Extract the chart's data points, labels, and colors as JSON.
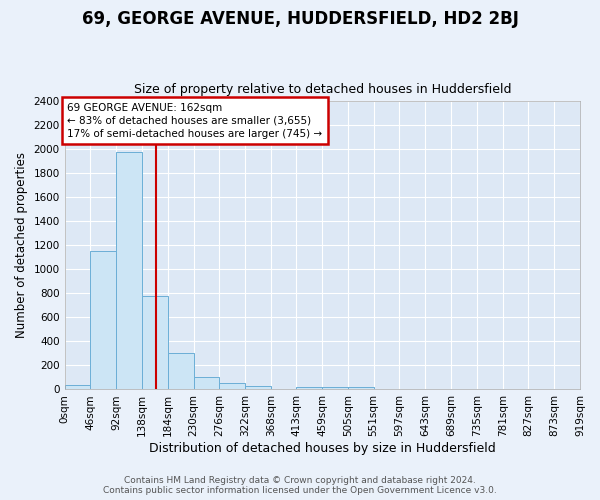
{
  "title1": "69, GEORGE AVENUE, HUDDERSFIELD, HD2 2BJ",
  "title2": "Size of property relative to detached houses in Huddersfield",
  "xlabel": "Distribution of detached houses by size in Huddersfield",
  "ylabel": "Number of detached properties",
  "bar_edges": [
    0,
    46,
    92,
    138,
    184,
    230,
    276,
    322,
    368,
    413,
    459,
    505,
    551,
    597,
    643,
    689,
    735,
    781,
    827,
    873,
    919
  ],
  "bar_heights": [
    40,
    1150,
    1980,
    780,
    300,
    100,
    50,
    30,
    0,
    20,
    20,
    20,
    0,
    0,
    0,
    0,
    0,
    0,
    0,
    0
  ],
  "bar_color": "#cce5f5",
  "bar_edge_color": "#6baed6",
  "red_line_x": 162,
  "annot_line1": "69 GEORGE AVENUE: 162sqm",
  "annot_line2": "← 83% of detached houses are smaller (3,655)",
  "annot_line3": "17% of semi-detached houses are larger (745) →",
  "annotation_box_color": "#ffffff",
  "annotation_box_edge": "#cc0000",
  "ylim": [
    0,
    2400
  ],
  "yticks": [
    0,
    200,
    400,
    600,
    800,
    1000,
    1200,
    1400,
    1600,
    1800,
    2000,
    2200,
    2400
  ],
  "xtick_labels": [
    "0sqm",
    "46sqm",
    "92sqm",
    "138sqm",
    "184sqm",
    "230sqm",
    "276sqm",
    "322sqm",
    "368sqm",
    "413sqm",
    "459sqm",
    "505sqm",
    "551sqm",
    "597sqm",
    "643sqm",
    "689sqm",
    "735sqm",
    "781sqm",
    "827sqm",
    "873sqm",
    "919sqm"
  ],
  "footer_text": "Contains HM Land Registry data © Crown copyright and database right 2024.\nContains public sector information licensed under the Open Government Licence v3.0.",
  "bg_color": "#eaf1fa",
  "plot_bg_color": "#dde8f5",
  "grid_color": "#ffffff",
  "title1_fontsize": 12,
  "title2_fontsize": 9,
  "xlabel_fontsize": 9,
  "ylabel_fontsize": 8.5,
  "tick_fontsize": 7.5,
  "footer_fontsize": 6.5
}
